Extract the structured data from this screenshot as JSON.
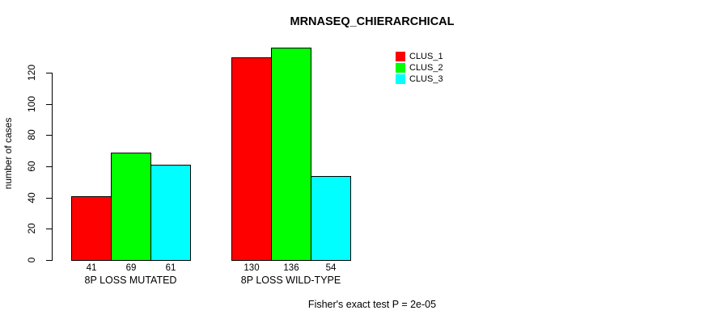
{
  "chart_data": {
    "type": "bar",
    "title": "MRNASEQ_CHIERARCHICAL",
    "ylabel": "number of cases",
    "xlabel": "",
    "categories": [
      "8P LOSS MUTATED",
      "8P LOSS WILD-TYPE"
    ],
    "series": [
      {
        "name": "CLUS_1",
        "color": "#ff0000",
        "values": [
          41,
          130
        ]
      },
      {
        "name": "CLUS_2",
        "color": "#00ff00",
        "values": [
          69,
          136
        ]
      },
      {
        "name": "CLUS_3",
        "color": "#00ffff",
        "values": [
          61,
          54
        ]
      }
    ],
    "yticks": [
      0,
      20,
      40,
      60,
      80,
      100,
      120
    ],
    "ylim": [
      0,
      140
    ],
    "grid": false,
    "bar_value_labels_shown": true,
    "legend_position": "top-right",
    "annotation": "Fisher's exact test P = 2e-05"
  }
}
